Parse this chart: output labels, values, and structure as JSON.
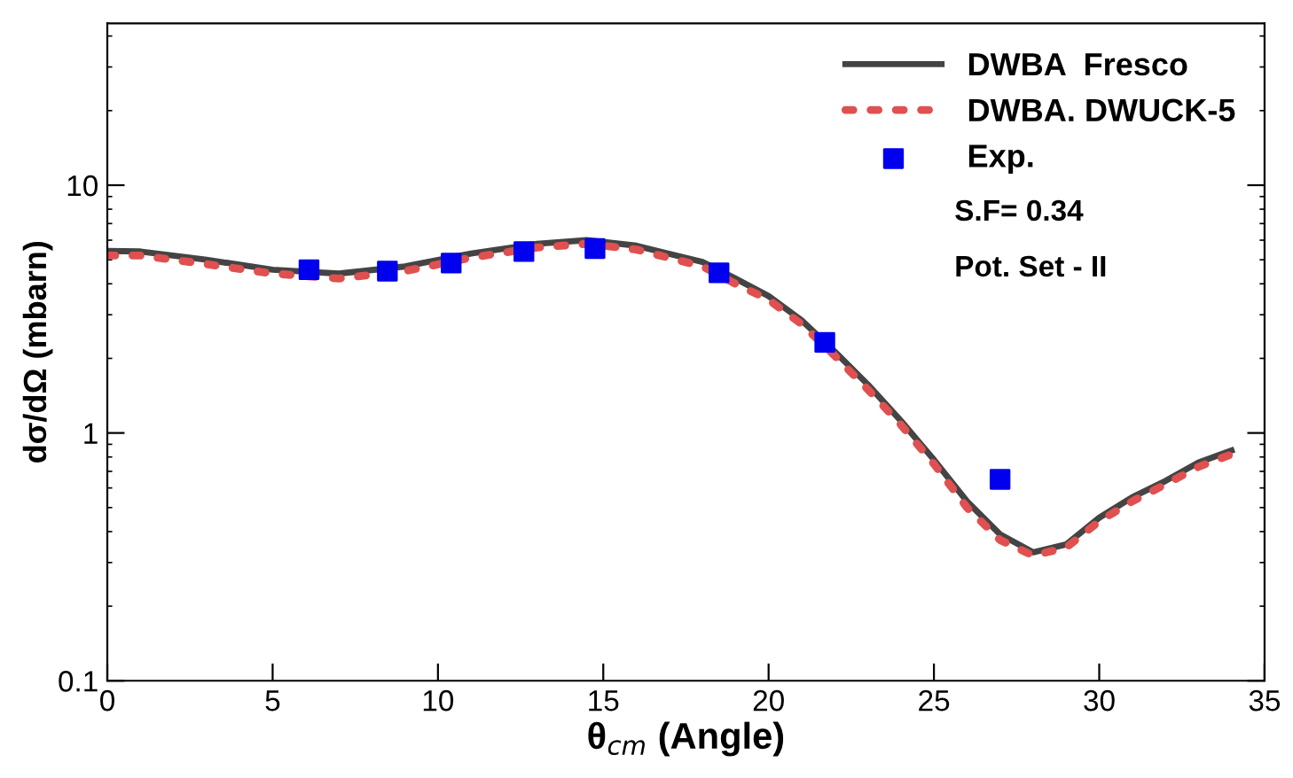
{
  "chart_data": {
    "type": "line",
    "xlabel": "θ$_{cm}$ (Angle)",
    "ylabel": "dσ/dΩ (mbarn)",
    "log": "y",
    "xlim": [
      0,
      35
    ],
    "xticks": [
      0,
      5,
      10,
      15,
      20,
      25,
      30,
      35
    ],
    "ylim": [
      0.1,
      45
    ],
    "yticks": [
      0.1,
      1,
      10
    ],
    "grid": false,
    "legend": "top right",
    "annotations": [
      "S.F= 0.34",
      "Pot. Set - II"
    ],
    "series": [
      {
        "name": "DWBA  Fresco",
        "color": "#444444",
        "line_style": "solid",
        "x": [
          0,
          1,
          3,
          5,
          7,
          9,
          11,
          13,
          14.5,
          16,
          18,
          19,
          20,
          21,
          22,
          23,
          24,
          25,
          26,
          27,
          28,
          29,
          30,
          31,
          32,
          33,
          34
        ],
        "values": [
          5.43,
          5.4,
          5.0,
          4.56,
          4.4,
          4.7,
          5.3,
          5.8,
          6.0,
          5.7,
          4.9,
          4.2,
          3.57,
          2.85,
          2.13,
          1.57,
          1.12,
          0.78,
          0.53,
          0.39,
          0.33,
          0.355,
          0.455,
          0.55,
          0.64,
          0.76,
          0.85
        ]
      },
      {
        "name": "DWBA. DWUCK-5",
        "color": "#e05050",
        "line_style": "dotted",
        "x": [
          0,
          1,
          3,
          5,
          7,
          9,
          11,
          13,
          14.5,
          16,
          18,
          19,
          20,
          21,
          22,
          23,
          24,
          25,
          26,
          27,
          28,
          29,
          30,
          31,
          32,
          33,
          34
        ],
        "values": [
          5.2,
          5.2,
          4.8,
          4.4,
          4.2,
          4.5,
          5.1,
          5.6,
          5.8,
          5.5,
          4.7,
          4.0,
          3.45,
          2.75,
          2.05,
          1.5,
          1.08,
          0.75,
          0.5,
          0.37,
          0.32,
          0.345,
          0.44,
          0.53,
          0.62,
          0.73,
          0.82
        ]
      },
      {
        "name": "Exp.",
        "type": "scatter",
        "marker": "square",
        "color": "#0000ee",
        "x": [
          6.1,
          8.47,
          10.4,
          12.6,
          14.75,
          18.5,
          21.7,
          27.0
        ],
        "values": [
          4.56,
          4.5,
          4.85,
          5.4,
          5.55,
          4.43,
          2.32,
          0.65
        ]
      }
    ]
  }
}
